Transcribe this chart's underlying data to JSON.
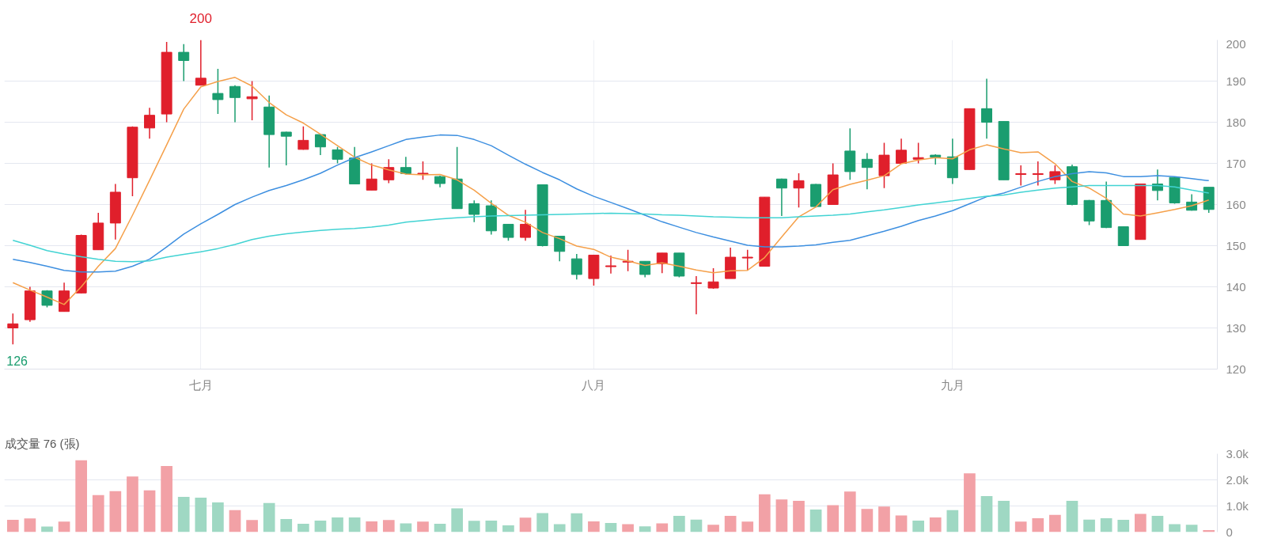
{
  "chart_data": [
    {
      "type": "candlestick",
      "categories": [
        null,
        null,
        null,
        null,
        null,
        null,
        null,
        null,
        null,
        null,
        null,
        "七月",
        null,
        null,
        null,
        null,
        null,
        null,
        null,
        null,
        null,
        null,
        null,
        null,
        null,
        null,
        null,
        null,
        null,
        null,
        null,
        null,
        null,
        null,
        "八月",
        null,
        null,
        null,
        null,
        null,
        null,
        null,
        null,
        null,
        null,
        null,
        null,
        null,
        null,
        null,
        null,
        null,
        null,
        null,
        null,
        "九月",
        null,
        null,
        null,
        null,
        null,
        null,
        null,
        null,
        null,
        null,
        null,
        null,
        null,
        null,
        null
      ],
      "ohlc": [
        [
          130,
          133.5,
          126,
          131
        ],
        [
          132,
          140,
          131.5,
          139
        ],
        [
          139,
          139.2,
          135,
          135.5
        ],
        [
          134,
          141,
          134,
          139
        ],
        [
          138.5,
          152.7,
          138.4,
          152.5
        ],
        [
          149,
          158,
          149,
          155.5
        ],
        [
          155.5,
          165,
          151.5,
          163
        ],
        [
          166.5,
          179,
          162,
          178.8
        ],
        [
          178.6,
          183.5,
          176,
          181.7
        ],
        [
          182,
          199.5,
          180,
          197
        ],
        [
          197,
          199,
          190,
          195
        ],
        [
          189,
          200,
          189,
          190.7
        ],
        [
          187,
          193,
          182,
          185.5
        ],
        [
          188.7,
          189,
          180,
          186
        ],
        [
          185.7,
          190,
          180.5,
          186.2
        ],
        [
          183.7,
          186.5,
          169,
          177
        ],
        [
          177.6,
          177.7,
          169.5,
          176.6
        ],
        [
          173.4,
          179,
          173.3,
          175.6
        ],
        [
          177,
          177.2,
          172,
          174
        ],
        [
          173.3,
          174,
          170,
          171
        ],
        [
          171.3,
          174,
          165,
          165
        ],
        [
          163.5,
          170,
          163.5,
          166.2
        ],
        [
          166,
          171,
          165.2,
          169
        ],
        [
          169,
          171.6,
          167.3,
          167.5
        ],
        [
          167.4,
          170.5,
          166,
          167.6
        ],
        [
          166.8,
          167,
          164.2,
          165.1
        ],
        [
          166.2,
          174,
          159,
          159
        ],
        [
          160.2,
          161,
          155.7,
          157.6
        ],
        [
          159.7,
          161,
          152.7,
          153.6
        ],
        [
          155.2,
          155.3,
          151.2,
          152
        ],
        [
          152,
          158.7,
          151.2,
          155.2
        ],
        [
          164.8,
          164.8,
          149.8,
          150
        ],
        [
          152.3,
          152.4,
          146.2,
          148.6
        ],
        [
          146.8,
          148,
          141.8,
          143
        ],
        [
          142,
          147.8,
          140.3,
          147.7
        ],
        [
          144.9,
          147.6,
          143.2,
          145.1
        ],
        [
          146,
          149,
          143.8,
          146.2
        ],
        [
          146.2,
          146.2,
          142.3,
          143
        ],
        [
          145.6,
          148.2,
          143.3,
          148.2
        ],
        [
          148.2,
          148.2,
          142.3,
          142.6
        ],
        [
          140.8,
          142.6,
          133.3,
          141
        ],
        [
          139.7,
          144.5,
          139.5,
          141.2
        ],
        [
          142,
          149.5,
          142,
          147.2
        ],
        [
          147,
          149,
          144,
          147.2
        ],
        [
          145,
          161.8,
          145,
          161.8
        ],
        [
          166.2,
          166.3,
          157.2,
          164
        ],
        [
          164,
          167.6,
          159.3,
          165.8
        ],
        [
          164.9,
          165,
          159.3,
          159.5
        ],
        [
          160,
          170,
          160,
          167.2
        ],
        [
          173,
          178.5,
          166,
          168
        ],
        [
          171,
          172.5,
          163.7,
          169
        ],
        [
          167,
          175,
          164,
          172
        ],
        [
          170,
          176,
          170,
          173.2
        ],
        [
          171,
          175,
          170,
          171.4
        ],
        [
          172,
          172.2,
          169.7,
          171.5
        ],
        [
          171.6,
          176,
          165,
          166.5
        ],
        [
          168.5,
          183.3,
          168.5,
          183.3
        ],
        [
          183.3,
          190.6,
          176,
          180
        ],
        [
          180.2,
          180.3,
          166,
          166
        ],
        [
          167.3,
          169.5,
          164.6,
          167.5
        ],
        [
          167.3,
          170.5,
          164.6,
          167.5
        ],
        [
          166,
          169.5,
          165,
          168
        ],
        [
          169.2,
          169.7,
          159.8,
          160
        ],
        [
          161,
          161.1,
          155,
          156
        ],
        [
          161,
          165.6,
          154.3,
          154.4
        ],
        [
          154.6,
          154.6,
          150,
          150
        ],
        [
          151.5,
          165.1,
          151.5,
          165
        ],
        [
          165,
          168.5,
          161,
          163.4
        ],
        [
          166.6,
          166.6,
          160.2,
          160.4
        ],
        [
          160.6,
          162.5,
          158.5,
          158.6
        ],
        [
          164.2,
          164.2,
          158,
          158.8
        ]
      ],
      "colors": [
        "#e01f2b",
        "#e01f2b",
        "#1a9d6f",
        "#e01f2b",
        "#e01f2b",
        "#e01f2b",
        "#e01f2b",
        "#e01f2b",
        "#e01f2b",
        "#e01f2b",
        "#1a9d6f",
        "#e01f2b",
        "#1a9d6f",
        "#1a9d6f",
        "#e01f2b",
        "#1a9d6f",
        "#1a9d6f",
        "#e01f2b",
        "#1a9d6f",
        "#1a9d6f",
        "#1a9d6f",
        "#e01f2b",
        "#e01f2b",
        "#1a9d6f",
        "#e01f2b",
        "#1a9d6f",
        "#1a9d6f",
        "#1a9d6f",
        "#1a9d6f",
        "#1a9d6f",
        "#e01f2b",
        "#1a9d6f",
        "#1a9d6f",
        "#1a9d6f",
        "#e01f2b",
        "#e01f2b",
        "#e01f2b",
        "#1a9d6f",
        "#e01f2b",
        "#1a9d6f",
        "#e01f2b",
        "#e01f2b",
        "#e01f2b",
        "#e01f2b",
        "#e01f2b",
        "#1a9d6f",
        "#e01f2b",
        "#1a9d6f",
        "#e01f2b",
        "#1a9d6f",
        "#1a9d6f",
        "#e01f2b",
        "#e01f2b",
        "#e01f2b",
        "#1a9d6f",
        "#1a9d6f",
        "#e01f2b",
        "#1a9d6f",
        "#1a9d6f",
        "#e01f2b",
        "#e01f2b",
        "#e01f2b",
        "#1a9d6f",
        "#1a9d6f",
        "#1a9d6f",
        "#1a9d6f",
        "#e01f2b",
        "#1a9d6f",
        "#1a9d6f",
        "#1a9d6f",
        "#1a9d6f"
      ],
      "series": [
        {
          "type": "line",
          "color": "#f5a04a",
          "values": [
            141,
            139.2,
            137.5,
            135.7,
            140,
            145,
            149.3,
            157.4,
            165.9,
            174.5,
            183.2,
            188.6,
            189.9,
            190.9,
            188.8,
            184.8,
            181.8,
            179.8,
            177.1,
            174.3,
            171.5,
            169.6,
            168.4,
            167.4,
            167.2,
            167.3,
            166,
            163.5,
            160.3,
            157.4,
            155.7,
            153.2,
            151.7,
            149.9,
            149.1,
            147.2,
            146.3,
            145.2,
            145.8,
            145,
            144.1,
            143.4,
            143.9,
            144,
            147.1,
            152.1,
            157,
            159.4,
            163.6,
            164.9,
            165.9,
            167,
            169.9,
            170.8,
            171.4,
            171.1,
            173.3,
            174.5,
            173.5,
            172.6,
            172.8,
            169.9,
            165.6,
            164,
            161.5,
            157.7,
            157.2,
            158,
            158.8,
            159.7,
            161.1
          ]
        },
        {
          "type": "line",
          "color": "#3d8fe0",
          "values": [
            146.7,
            145.9,
            145,
            144,
            143.6,
            143.6,
            143.8,
            145,
            146.7,
            149.7,
            152.8,
            155.3,
            157.6,
            160,
            161.8,
            163.4,
            164.6,
            166,
            167.6,
            169.6,
            171.4,
            172.8,
            174.3,
            175.8,
            176.4,
            176.9,
            176.8,
            175.8,
            174.3,
            172,
            169.8,
            167.8,
            166,
            163.8,
            162,
            160.5,
            159,
            157.4,
            155.8,
            154.5,
            153.2,
            152.1,
            151.1,
            150.1,
            149.7,
            149.7,
            149.9,
            150.2,
            150.8,
            151.3,
            152.4,
            153.5,
            154.7,
            156.1,
            157.2,
            158.5,
            160.2,
            161.9,
            162.8,
            164.2,
            165.6,
            166.8,
            167.5,
            168,
            167.7,
            166.8,
            166.8,
            167,
            166.8,
            166.3,
            165.8
          ]
        },
        {
          "type": "line",
          "color": "#42d3d3",
          "values": [
            151.3,
            150.1,
            148.8,
            148,
            147.3,
            146.7,
            146.2,
            146.1,
            146.3,
            147.2,
            147.9,
            148.5,
            149.3,
            150.3,
            151.5,
            152.3,
            152.9,
            153.3,
            153.7,
            154,
            154.2,
            154.5,
            155,
            155.7,
            156.1,
            156.5,
            156.8,
            157,
            157.2,
            157.3,
            157.4,
            157.5,
            157.6,
            157.7,
            157.8,
            157.9,
            157.8,
            157.7,
            157.5,
            157.4,
            157.2,
            157,
            156.9,
            156.8,
            156.8,
            156.8,
            157,
            157.2,
            157.4,
            157.7,
            158.2,
            158.7,
            159.3,
            159.9,
            160.4,
            160.9,
            161.5,
            162,
            162.3,
            163,
            163.5,
            164,
            164.3,
            164.6,
            164.6,
            164.6,
            164.6,
            164.6,
            164.3,
            163.5,
            162.8
          ]
        }
      ],
      "ylim": [
        120,
        200
      ],
      "yticks": [
        120,
        130,
        140,
        150,
        160,
        170,
        180,
        190,
        200
      ],
      "grid": true,
      "annotations": [
        {
          "text": "200",
          "x": "七月",
          "y": 200
        },
        "126"
      ]
    },
    {
      "type": "bar",
      "title": "成交量  76 (張)",
      "categories": [
        null,
        null,
        null,
        null,
        null,
        null,
        null,
        null,
        null,
        null,
        null,
        null,
        null,
        null,
        null,
        null,
        null,
        null,
        null,
        null,
        null,
        null,
        null,
        null,
        null,
        null,
        null,
        null,
        null,
        null,
        null,
        null,
        null,
        null,
        null,
        null,
        null,
        null,
        null,
        null,
        null,
        null,
        null,
        null,
        null,
        null,
        null,
        null,
        null,
        null,
        null,
        null,
        null,
        null,
        null,
        null,
        null,
        null,
        null,
        null,
        null,
        null,
        null,
        null,
        null,
        null,
        null,
        null,
        null,
        null,
        null
      ],
      "values": [
        470,
        520,
        210,
        400,
        2750,
        1420,
        1570,
        2130,
        1600,
        2530,
        1350,
        1320,
        1140,
        840,
        460,
        1110,
        500,
        320,
        440,
        560,
        560,
        410,
        460,
        330,
        400,
        320,
        910,
        430,
        440,
        260,
        550,
        730,
        300,
        720,
        410,
        350,
        300,
        220,
        330,
        620,
        480,
        280,
        620,
        400,
        1450,
        1250,
        1200,
        860,
        1030,
        1550,
        890,
        980,
        640,
        440,
        560,
        840,
        2250,
        1380,
        1200,
        400,
        530,
        660,
        1200,
        480,
        530,
        470,
        700,
        620,
        300,
        280,
        76
      ],
      "colors": [
        "#f2a1a6",
        "#f2a1a6",
        "#9fd8c3",
        "#f2a1a6",
        "#f2a1a6",
        "#f2a1a6",
        "#f2a1a6",
        "#f2a1a6",
        "#f2a1a6",
        "#f2a1a6",
        "#9fd8c3",
        "#9fd8c3",
        "#9fd8c3",
        "#f2a1a6",
        "#f2a1a6",
        "#9fd8c3",
        "#9fd8c3",
        "#9fd8c3",
        "#9fd8c3",
        "#9fd8c3",
        "#9fd8c3",
        "#f2a1a6",
        "#f2a1a6",
        "#9fd8c3",
        "#f2a1a6",
        "#9fd8c3",
        "#9fd8c3",
        "#9fd8c3",
        "#9fd8c3",
        "#9fd8c3",
        "#f2a1a6",
        "#9fd8c3",
        "#9fd8c3",
        "#9fd8c3",
        "#f2a1a6",
        "#9fd8c3",
        "#f2a1a6",
        "#9fd8c3",
        "#f2a1a6",
        "#9fd8c3",
        "#9fd8c3",
        "#f2a1a6",
        "#f2a1a6",
        "#f2a1a6",
        "#f2a1a6",
        "#f2a1a6",
        "#f2a1a6",
        "#9fd8c3",
        "#f2a1a6",
        "#f2a1a6",
        "#f2a1a6",
        "#f2a1a6",
        "#f2a1a6",
        "#9fd8c3",
        "#f2a1a6",
        "#9fd8c3",
        "#f2a1a6",
        "#9fd8c3",
        "#9fd8c3",
        "#f2a1a6",
        "#f2a1a6",
        "#f2a1a6",
        "#9fd8c3",
        "#9fd8c3",
        "#9fd8c3",
        "#9fd8c3",
        "#f2a1a6",
        "#9fd8c3",
        "#9fd8c3",
        "#9fd8c3",
        "#f2a1a6"
      ],
      "ylim": [
        0,
        3000
      ],
      "yticks": [
        0,
        {
          "value": 1000,
          "label": "1.0k"
        },
        {
          "value": 2000,
          "label": "2.0k"
        },
        {
          "value": 3000,
          "label": "3.0k"
        }
      ],
      "grid": "y",
      "tick_labels": "y"
    }
  ]
}
